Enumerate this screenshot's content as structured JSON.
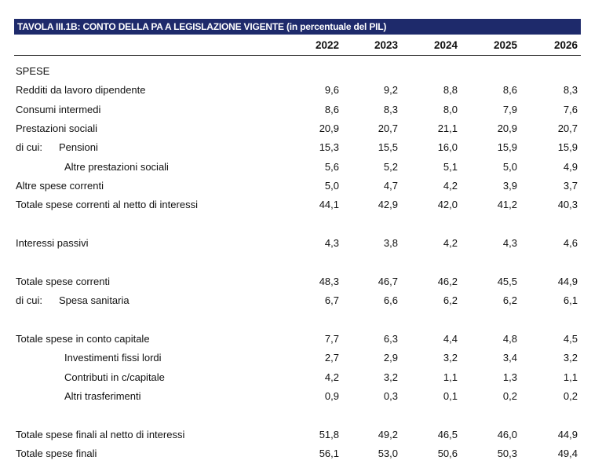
{
  "header": {
    "title": "TAVOLA III.1B: CONTO DELLA PA A LEGISLAZIONE VIGENTE (in percentuale del PIL)",
    "years": [
      "2022",
      "2023",
      "2024",
      "2025",
      "2026"
    ]
  },
  "table": {
    "rows": [
      {
        "label": "SPESE"
      },
      {
        "label": "Redditi da lavoro dipendente",
        "values": [
          "9,6",
          "9,2",
          "8,8",
          "8,6",
          "8,3"
        ]
      },
      {
        "label": "Consumi intermedi",
        "values": [
          "8,6",
          "8,3",
          "8,0",
          "7,9",
          "7,6"
        ]
      },
      {
        "label": "Prestazioni sociali",
        "values": [
          "20,9",
          "20,7",
          "21,1",
          "20,9",
          "20,7"
        ]
      },
      {
        "prefix": "di cui:",
        "label": "Pensioni",
        "values": [
          "15,3",
          "15,5",
          "16,0",
          "15,9",
          "15,9"
        ]
      },
      {
        "label": "Altre prestazioni sociali",
        "values": [
          "5,6",
          "5,2",
          "5,1",
          "5,0",
          "4,9"
        ]
      },
      {
        "label": "Altre spese correnti",
        "values": [
          "5,0",
          "4,7",
          "4,2",
          "3,9",
          "3,7"
        ]
      },
      {
        "label": "Totale spese correnti al netto di interessi",
        "values": [
          "44,1",
          "42,9",
          "42,0",
          "41,2",
          "40,3"
        ]
      },
      {
        "label": "Interessi passivi",
        "values": [
          "4,3",
          "3,8",
          "4,2",
          "4,3",
          "4,6"
        ]
      },
      {
        "label": "Totale spese correnti",
        "values": [
          "48,3",
          "46,7",
          "46,2",
          "45,5",
          "44,9"
        ]
      },
      {
        "prefix": "di cui:",
        "label": "Spesa sanitaria",
        "values": [
          "6,7",
          "6,6",
          "6,2",
          "6,2",
          "6,1"
        ]
      },
      {
        "label": "Totale spese in conto capitale",
        "values": [
          "7,7",
          "6,3",
          "4,4",
          "4,8",
          "4,5"
        ]
      },
      {
        "label": "Investimenti fissi lordi",
        "values": [
          "2,7",
          "2,9",
          "3,2",
          "3,4",
          "3,2"
        ]
      },
      {
        "label": "Contributi in c/capitale",
        "values": [
          "4,2",
          "3,2",
          "1,1",
          "1,3",
          "1,1"
        ]
      },
      {
        "label": "Altri trasferimenti",
        "values": [
          "0,9",
          "0,3",
          "0,1",
          "0,2",
          "0,2"
        ]
      },
      {
        "label": "Totale spese finali al netto di interessi",
        "values": [
          "51,8",
          "49,2",
          "46,5",
          "46,0",
          "44,9"
        ]
      },
      {
        "label": "Totale spese finali",
        "values": [
          "56,1",
          "53,0",
          "50,6",
          "50,3",
          "49,4"
        ]
      }
    ]
  }
}
